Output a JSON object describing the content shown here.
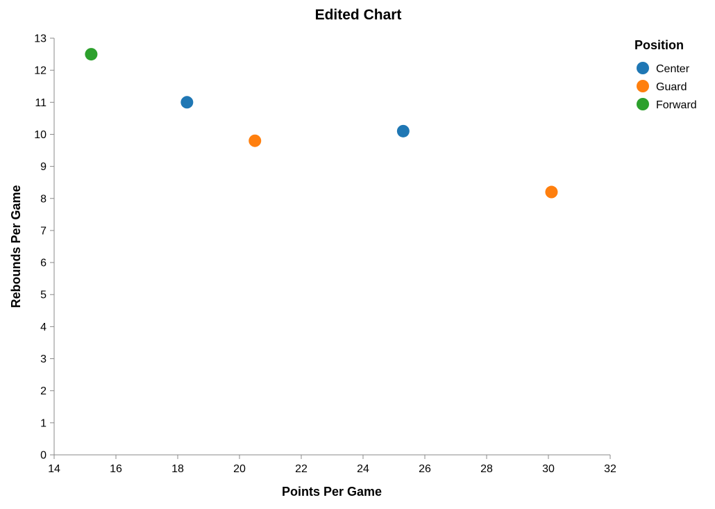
{
  "chart_data": {
    "type": "scatter",
    "title": "Edited Chart",
    "xlabel": "Points Per Game",
    "ylabel": "Rebounds Per Game",
    "xlim": [
      14,
      32
    ],
    "ylim": [
      0,
      13
    ],
    "x_ticks": [
      14,
      16,
      18,
      20,
      22,
      24,
      26,
      28,
      30,
      32
    ],
    "y_ticks": [
      0,
      1,
      2,
      3,
      4,
      5,
      6,
      7,
      8,
      9,
      10,
      11,
      12,
      13
    ],
    "grid": false,
    "legend": {
      "title": "Position",
      "placement": "top-right",
      "entries": [
        {
          "label": "Center",
          "color": "#1f77b4"
        },
        {
          "label": "Guard",
          "color": "#ff7f0e"
        },
        {
          "label": "Forward",
          "color": "#2ca02c"
        }
      ]
    },
    "points": [
      {
        "x": 15.2,
        "y": 12.5,
        "position": "Forward"
      },
      {
        "x": 18.3,
        "y": 11.0,
        "position": "Center"
      },
      {
        "x": 20.5,
        "y": 9.8,
        "position": "Guard"
      },
      {
        "x": 25.3,
        "y": 10.1,
        "position": "Center"
      },
      {
        "x": 30.1,
        "y": 8.2,
        "position": "Guard"
      }
    ]
  }
}
